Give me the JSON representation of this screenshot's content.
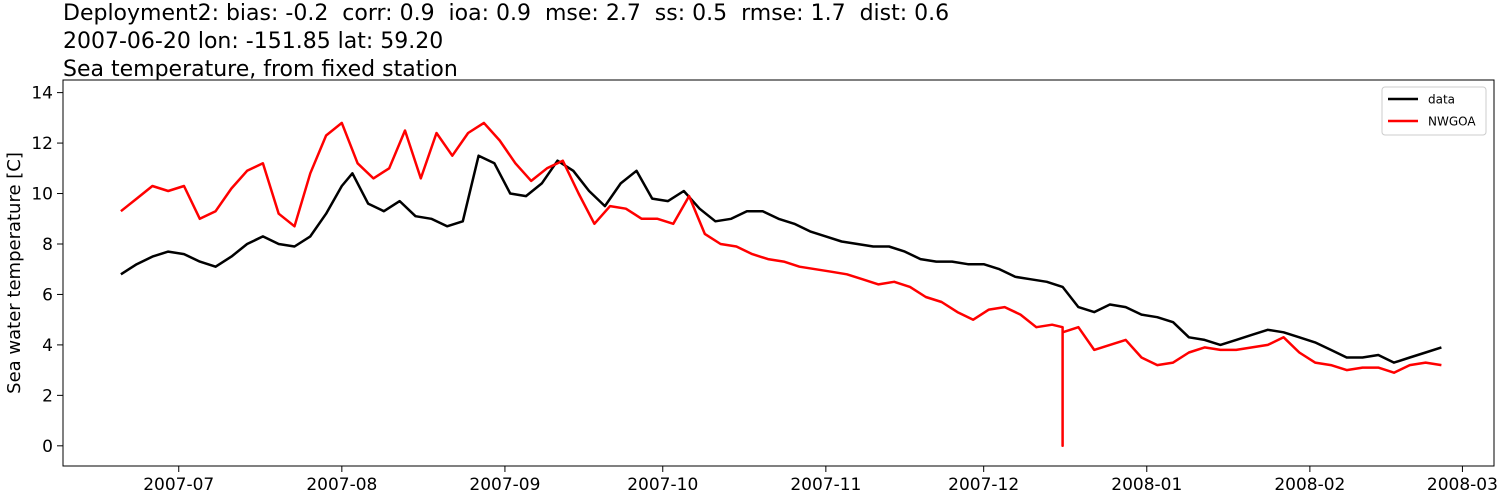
{
  "title_lines": [
    "Deployment2: bias: -0.2  corr: 0.9  ioa: 0.9  mse: 2.7  ss: 0.5  rmse: 1.7  dist: 0.6",
    "2007-06-20 lon: -151.85 lat: 59.20",
    "Sea temperature, from fixed station"
  ],
  "chart_data": {
    "type": "line",
    "ylabel": "Sea water temperature [C]",
    "xlabel": "",
    "xlim": [
      "2007-06-09",
      "2008-03-07"
    ],
    "ylim": [
      -0.8,
      14.5
    ],
    "x_ticks": [
      "2007-07-01",
      "2007-08-01",
      "2007-09-01",
      "2007-10-01",
      "2007-11-01",
      "2007-12-01",
      "2008-01-01",
      "2008-02-01",
      "2008-03-01"
    ],
    "x_tick_labels": [
      "2007-07",
      "2007-08",
      "2007-09",
      "2007-10",
      "2007-11",
      "2007-12",
      "2008-01",
      "2008-02",
      "2008-03"
    ],
    "y_ticks": [
      0,
      2,
      4,
      6,
      8,
      10,
      12,
      14
    ],
    "y_tick_labels": [
      "0",
      "2",
      "4",
      "6",
      "8",
      "10",
      "12",
      "14"
    ],
    "grid": false,
    "legend": {
      "position": "top-right"
    },
    "series": [
      {
        "name": "data",
        "color": "#000000",
        "points": [
          [
            "2007-06-20",
            6.8
          ],
          [
            "2007-06-23",
            7.2
          ],
          [
            "2007-06-26",
            7.5
          ],
          [
            "2007-06-29",
            7.7
          ],
          [
            "2007-07-02",
            7.6
          ],
          [
            "2007-07-05",
            7.3
          ],
          [
            "2007-07-08",
            7.1
          ],
          [
            "2007-07-11",
            7.5
          ],
          [
            "2007-07-14",
            8.0
          ],
          [
            "2007-07-17",
            8.3
          ],
          [
            "2007-07-20",
            8.0
          ],
          [
            "2007-07-23",
            7.9
          ],
          [
            "2007-07-26",
            8.3
          ],
          [
            "2007-07-29",
            9.2
          ],
          [
            "2007-08-01",
            10.3
          ],
          [
            "2007-08-03",
            10.8
          ],
          [
            "2007-08-06",
            9.6
          ],
          [
            "2007-08-09",
            9.3
          ],
          [
            "2007-08-12",
            9.7
          ],
          [
            "2007-08-15",
            9.1
          ],
          [
            "2007-08-18",
            9.0
          ],
          [
            "2007-08-21",
            8.7
          ],
          [
            "2007-08-24",
            8.9
          ],
          [
            "2007-08-27",
            11.5
          ],
          [
            "2007-08-30",
            11.2
          ],
          [
            "2007-09-02",
            10.0
          ],
          [
            "2007-09-05",
            9.9
          ],
          [
            "2007-09-08",
            10.4
          ],
          [
            "2007-09-11",
            11.3
          ],
          [
            "2007-09-14",
            10.9
          ],
          [
            "2007-09-17",
            10.1
          ],
          [
            "2007-09-20",
            9.5
          ],
          [
            "2007-09-23",
            10.4
          ],
          [
            "2007-09-26",
            10.9
          ],
          [
            "2007-09-29",
            9.8
          ],
          [
            "2007-10-02",
            9.7
          ],
          [
            "2007-10-05",
            10.1
          ],
          [
            "2007-10-08",
            9.4
          ],
          [
            "2007-10-11",
            8.9
          ],
          [
            "2007-10-14",
            9.0
          ],
          [
            "2007-10-17",
            9.3
          ],
          [
            "2007-10-20",
            9.3
          ],
          [
            "2007-10-23",
            9.0
          ],
          [
            "2007-10-26",
            8.8
          ],
          [
            "2007-10-29",
            8.5
          ],
          [
            "2007-11-01",
            8.3
          ],
          [
            "2007-11-04",
            8.1
          ],
          [
            "2007-11-07",
            8.0
          ],
          [
            "2007-11-10",
            7.9
          ],
          [
            "2007-11-13",
            7.9
          ],
          [
            "2007-11-16",
            7.7
          ],
          [
            "2007-11-19",
            7.4
          ],
          [
            "2007-11-22",
            7.3
          ],
          [
            "2007-11-25",
            7.3
          ],
          [
            "2007-11-28",
            7.2
          ],
          [
            "2007-12-01",
            7.2
          ],
          [
            "2007-12-04",
            7.0
          ],
          [
            "2007-12-07",
            6.7
          ],
          [
            "2007-12-10",
            6.6
          ],
          [
            "2007-12-13",
            6.5
          ],
          [
            "2007-12-16",
            6.3
          ],
          [
            "2007-12-19",
            5.5
          ],
          [
            "2007-12-22",
            5.3
          ],
          [
            "2007-12-25",
            5.6
          ],
          [
            "2007-12-28",
            5.5
          ],
          [
            "2007-12-31",
            5.2
          ],
          [
            "2008-01-03",
            5.1
          ],
          [
            "2008-01-06",
            4.9
          ],
          [
            "2008-01-09",
            4.3
          ],
          [
            "2008-01-12",
            4.2
          ],
          [
            "2008-01-15",
            4.0
          ],
          [
            "2008-01-18",
            4.2
          ],
          [
            "2008-01-21",
            4.4
          ],
          [
            "2008-01-24",
            4.6
          ],
          [
            "2008-01-27",
            4.5
          ],
          [
            "2008-01-30",
            4.3
          ],
          [
            "2008-02-02",
            4.1
          ],
          [
            "2008-02-05",
            3.8
          ],
          [
            "2008-02-08",
            3.5
          ],
          [
            "2008-02-11",
            3.5
          ],
          [
            "2008-02-14",
            3.6
          ],
          [
            "2008-02-17",
            3.3
          ],
          [
            "2008-02-20",
            3.5
          ],
          [
            "2008-02-23",
            3.7
          ],
          [
            "2008-02-26",
            3.9
          ]
        ]
      },
      {
        "name": "NWGOA",
        "color": "#ff0000",
        "points": [
          [
            "2007-06-20",
            9.3
          ],
          [
            "2007-06-23",
            9.8
          ],
          [
            "2007-06-26",
            10.3
          ],
          [
            "2007-06-29",
            10.1
          ],
          [
            "2007-07-02",
            10.3
          ],
          [
            "2007-07-05",
            9.0
          ],
          [
            "2007-07-08",
            9.3
          ],
          [
            "2007-07-11",
            10.2
          ],
          [
            "2007-07-14",
            10.9
          ],
          [
            "2007-07-17",
            11.2
          ],
          [
            "2007-07-20",
            9.2
          ],
          [
            "2007-07-23",
            8.7
          ],
          [
            "2007-07-26",
            10.8
          ],
          [
            "2007-07-29",
            12.3
          ],
          [
            "2007-08-01",
            12.8
          ],
          [
            "2007-08-04",
            11.2
          ],
          [
            "2007-08-07",
            10.6
          ],
          [
            "2007-08-10",
            11.0
          ],
          [
            "2007-08-13",
            12.5
          ],
          [
            "2007-08-16",
            10.6
          ],
          [
            "2007-08-19",
            12.4
          ],
          [
            "2007-08-22",
            11.5
          ],
          [
            "2007-08-25",
            12.4
          ],
          [
            "2007-08-28",
            12.8
          ],
          [
            "2007-08-31",
            12.1
          ],
          [
            "2007-09-03",
            11.2
          ],
          [
            "2007-09-06",
            10.5
          ],
          [
            "2007-09-09",
            11.0
          ],
          [
            "2007-09-12",
            11.3
          ],
          [
            "2007-09-15",
            10.0
          ],
          [
            "2007-09-18",
            8.8
          ],
          [
            "2007-09-21",
            9.5
          ],
          [
            "2007-09-24",
            9.4
          ],
          [
            "2007-09-27",
            9.0
          ],
          [
            "2007-09-30",
            9.0
          ],
          [
            "2007-10-03",
            8.8
          ],
          [
            "2007-10-06",
            9.9
          ],
          [
            "2007-10-09",
            8.4
          ],
          [
            "2007-10-12",
            8.0
          ],
          [
            "2007-10-15",
            7.9
          ],
          [
            "2007-10-18",
            7.6
          ],
          [
            "2007-10-21",
            7.4
          ],
          [
            "2007-10-24",
            7.3
          ],
          [
            "2007-10-27",
            7.1
          ],
          [
            "2007-10-30",
            7.0
          ],
          [
            "2007-11-02",
            6.9
          ],
          [
            "2007-11-05",
            6.8
          ],
          [
            "2007-11-08",
            6.6
          ],
          [
            "2007-11-11",
            6.4
          ],
          [
            "2007-11-14",
            6.5
          ],
          [
            "2007-11-17",
            6.3
          ],
          [
            "2007-11-20",
            5.9
          ],
          [
            "2007-11-23",
            5.7
          ],
          [
            "2007-11-26",
            5.3
          ],
          [
            "2007-11-29",
            5.0
          ],
          [
            "2007-12-02",
            5.4
          ],
          [
            "2007-12-05",
            5.5
          ],
          [
            "2007-12-08",
            5.2
          ],
          [
            "2007-12-11",
            4.7
          ],
          [
            "2007-12-14",
            4.8
          ],
          [
            "2007-12-16",
            4.7
          ],
          [
            "2007-12-16",
            0.0
          ],
          [
            "2007-12-16",
            4.5
          ],
          [
            "2007-12-19",
            4.7
          ],
          [
            "2007-12-22",
            3.8
          ],
          [
            "2007-12-25",
            4.0
          ],
          [
            "2007-12-28",
            4.2
          ],
          [
            "2007-12-31",
            3.5
          ],
          [
            "2008-01-03",
            3.2
          ],
          [
            "2008-01-06",
            3.3
          ],
          [
            "2008-01-09",
            3.7
          ],
          [
            "2008-01-12",
            3.9
          ],
          [
            "2008-01-15",
            3.8
          ],
          [
            "2008-01-18",
            3.8
          ],
          [
            "2008-01-21",
            3.9
          ],
          [
            "2008-01-24",
            4.0
          ],
          [
            "2008-01-27",
            4.3
          ],
          [
            "2008-01-30",
            3.7
          ],
          [
            "2008-02-02",
            3.3
          ],
          [
            "2008-02-05",
            3.2
          ],
          [
            "2008-02-08",
            3.0
          ],
          [
            "2008-02-11",
            3.1
          ],
          [
            "2008-02-14",
            3.1
          ],
          [
            "2008-02-17",
            2.9
          ],
          [
            "2008-02-20",
            3.2
          ],
          [
            "2008-02-23",
            3.3
          ],
          [
            "2008-02-26",
            3.2
          ]
        ]
      }
    ]
  }
}
